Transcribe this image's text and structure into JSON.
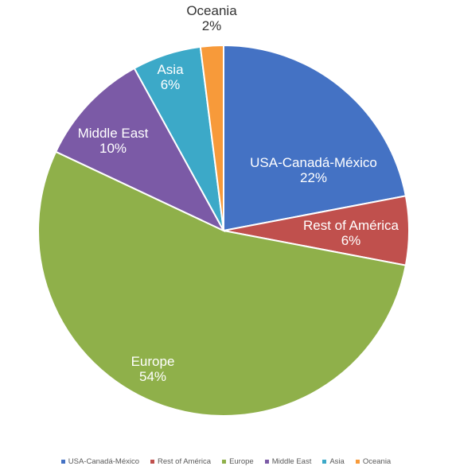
{
  "chart_data": {
    "type": "pie",
    "start_angle_deg": 0,
    "direction": "clockwise",
    "legend_position": "bottom",
    "slices": [
      {
        "name": "USA-Canadá-México",
        "value": 22,
        "label": "USA-Canadá-México",
        "value_label": "22%",
        "color": "#4472C4",
        "label_color": "#ffffff"
      },
      {
        "name": "Rest of América",
        "value": 6,
        "label": "Rest of América",
        "value_label": "6%",
        "color": "#C0504D",
        "label_color": "#ffffff"
      },
      {
        "name": "Europe",
        "value": 54,
        "label": "Europe",
        "value_label": "54%",
        "color": "#8FB04A",
        "label_color": "#ffffff"
      },
      {
        "name": "Middle East",
        "value": 10,
        "label": "Middle East",
        "value_label": "10%",
        "color": "#7B5AA6",
        "label_color": "#ffffff"
      },
      {
        "name": "Asia",
        "value": 6,
        "label": "Asia",
        "value_label": "6%",
        "color": "#3CA9C8",
        "label_color": "#ffffff"
      },
      {
        "name": "Oceania",
        "value": 2,
        "label": "Oceania",
        "value_label": "2%",
        "color": "#F79A3A",
        "label_color": "#333333"
      }
    ],
    "legend": [
      "USA-Canadá-México",
      "Rest of América",
      "Europe",
      "Middle East",
      "Asia",
      "Oceania"
    ]
  }
}
